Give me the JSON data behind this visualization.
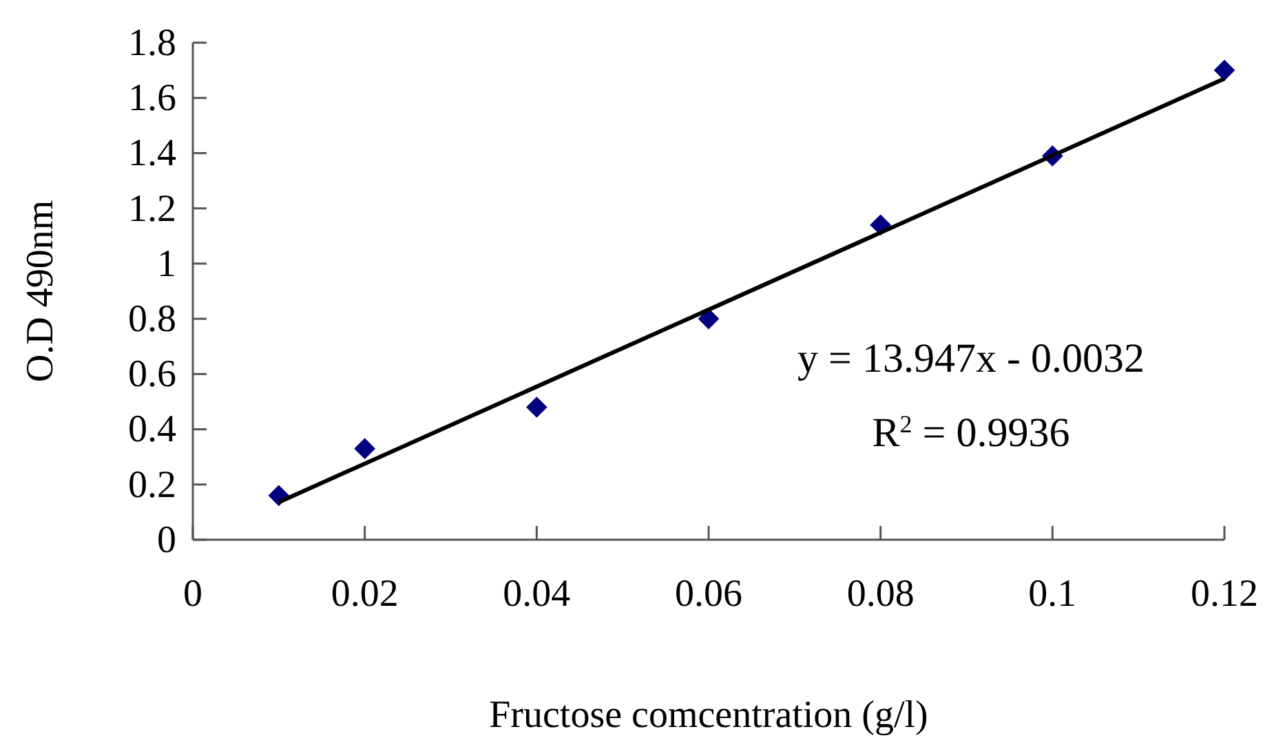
{
  "chart_data": {
    "type": "scatter",
    "xlabel": "Fructose comcentration (g/l)",
    "ylabel": "O.D 490nm",
    "xlim": [
      0,
      0.12
    ],
    "xticks": [
      0,
      0.02,
      0.04,
      0.06,
      0.08,
      {
        "value": 0.1,
        "label": "0.1"
      },
      0.12
    ],
    "ylim": [
      0,
      1.8
    ],
    "yticks": [
      0,
      0.2,
      0.4,
      0.6,
      0.8,
      1,
      1.2,
      1.4,
      1.6,
      1.8
    ],
    "grid": false,
    "series": [
      {
        "marker": "diamond",
        "color": "#000080",
        "x": [
          0.01,
          0.02,
          0.04,
          0.06,
          0.08,
          0.1,
          0.12
        ],
        "values": [
          0.16,
          0.33,
          0.48,
          0.8,
          1.14,
          1.39,
          1.7
        ]
      },
      {
        "type": "line",
        "color": "#000000",
        "line_style": "solid",
        "x": [
          0.01,
          0.12
        ],
        "values": [
          0.136,
          1.67
        ]
      }
    ],
    "annotations": [
      "y = 13.947x - 0.0032",
      "R$^{2}$ = 0.9936"
    ]
  }
}
